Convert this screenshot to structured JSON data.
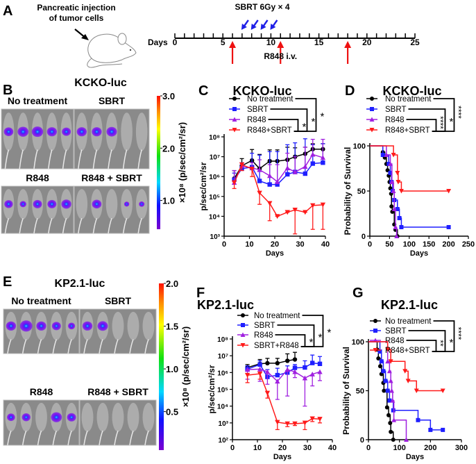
{
  "panel_a": {
    "letter": "A",
    "injection_label_1": "Pancreatic injection",
    "injection_label_2": "of tumor cells",
    "sbrt_label": "SBRT 6Gy × 4",
    "days_label": "Days",
    "day_ticks": [
      "0",
      "5",
      "10",
      "15",
      "20",
      "25"
    ],
    "day_max": 25,
    "sbrt_days": [
      7,
      8,
      9,
      10
    ],
    "r848_days": [
      6,
      11,
      18
    ],
    "r848_label": "R848 i.v.",
    "colors": {
      "sbrt": "#1f1fe6",
      "r848": "#ee1111"
    }
  },
  "panel_b": {
    "letter": "B",
    "title": "KCKO-luc",
    "groups": [
      {
        "label": "No treatment",
        "signal": [
          0.55,
          0.7,
          0.75,
          0.6,
          0.5
        ]
      },
      {
        "label": "SBRT",
        "signal": [
          0.6,
          0.6,
          0.65,
          0,
          0
        ]
      },
      {
        "label": "R848",
        "signal": [
          0.45,
          0.25,
          0.5,
          0.5,
          0.6
        ]
      },
      {
        "label": "R848 + SBRT",
        "signal": [
          0,
          0.55,
          0,
          0.1,
          0.15
        ]
      }
    ],
    "colorbar": {
      "ticks": [
        "3.0",
        "2.0",
        "1.0"
      ],
      "tick_values": [
        3,
        2,
        1
      ],
      "min": 0.45,
      "max": 3.0,
      "label": "×10⁸ (p/sec/cm²/sr)"
    }
  },
  "panel_e": {
    "letter": "E",
    "title": "KP2.1-luc",
    "groups": [
      {
        "label": "No treatment",
        "signal": [
          0.6,
          0.85,
          0.6,
          0.5,
          0.3
        ]
      },
      {
        "label": "SBRT",
        "signal": [
          0.6,
          0.65,
          0,
          0,
          0
        ]
      },
      {
        "label": "R848",
        "signal": [
          0.4,
          0.45,
          0,
          0.7,
          0.5
        ]
      },
      {
        "label": "R848 + SBRT",
        "signal": [
          0,
          0,
          0,
          0,
          0
        ]
      }
    ],
    "colorbar": {
      "ticks": [
        "2.0",
        "1.5",
        "1.0",
        "0.5"
      ],
      "tick_values": [
        2.0,
        1.5,
        1.0,
        0.5
      ],
      "min": 0.05,
      "max": 2.0,
      "label": "×10⁸ (p/sec/cm²/sr)"
    }
  },
  "chart_data": [
    {
      "id": "C",
      "letter": "C",
      "type": "line",
      "title": "KCKO-luc",
      "xlabel": "Days",
      "ylabel": "p/sec/cm²/sr",
      "yscale": "log",
      "xlim": [
        0,
        40
      ],
      "xticks": [
        0,
        10,
        20,
        30,
        40
      ],
      "xtick_labels": [
        "0",
        "10",
        "20",
        "30",
        "40"
      ],
      "ylim_exp": [
        3,
        8
      ],
      "ytick_labels": [
        "10³",
        "10⁴",
        "10⁵",
        "10⁶",
        "10⁷",
        "10⁸"
      ],
      "series": [
        {
          "name": "No treatment",
          "marker": "circle",
          "color": "#000000",
          "x": [
            4,
            7,
            11,
            14,
            18,
            21,
            25,
            28,
            32,
            35,
            39
          ],
          "y": [
            800000.0,
            3500000.0,
            6500000.0,
            2500000.0,
            6000000.0,
            6000000.0,
            7000000.0,
            10000000.0,
            14000000.0,
            24000000.0,
            24000000.0
          ],
          "error_dir": "up",
          "error_bound": [
            2000000.0,
            8000000.0,
            23000000.0,
            13000000.0,
            22000000.0,
            22000000.0,
            30000000.0,
            28000000.0,
            30000000.0,
            45000000.0,
            45000000.0
          ]
        },
        {
          "name": "SBRT",
          "marker": "square",
          "color": "#1f1fff",
          "x": [
            4,
            7,
            11,
            14,
            18,
            21,
            25,
            28,
            32,
            35,
            39
          ],
          "y": [
            700000.0,
            2500000.0,
            3000000.0,
            600000.0,
            400000.0,
            400000.0,
            1300000.0,
            1700000.0,
            1400000.0,
            4500000.0,
            5000000.0
          ],
          "error_dir": "up",
          "error_bound": [
            1500000.0,
            5000000.0,
            15000000.0,
            12000000.0,
            18000000.0,
            18000000.0,
            40000000.0,
            50000000.0,
            80000000.0,
            40000000.0,
            45000000.0
          ]
        },
        {
          "name": "R848",
          "marker": "triangle-up",
          "color": "#a020e0",
          "x": [
            4,
            7,
            11,
            14,
            18,
            21,
            25,
            28,
            32,
            35,
            39
          ],
          "y": [
            500000.0,
            3500000.0,
            2700000.0,
            2200000.0,
            1100000.0,
            550000.0,
            2700000.0,
            1700000.0,
            3200000.0,
            13000000.0,
            9000000.0
          ],
          "error_dir": "up",
          "error_bound": [
            2000000.0,
            4000000.0,
            5000000.0,
            7000000.0,
            4000000.0,
            4000000.0,
            15000000.0,
            10000000.0,
            30000000.0,
            75000000.0,
            75000000.0
          ]
        },
        {
          "name": "R848+SBRT",
          "marker": "triangle-down",
          "color": "#ff1a1a",
          "x": [
            4,
            7,
            11,
            14,
            18,
            21,
            25,
            28,
            32,
            35,
            39
          ],
          "y": [
            500000.0,
            4000000.0,
            2400000.0,
            150000.0,
            45000.0,
            10000.0,
            16000.0,
            21000.0,
            16000.0,
            35000.0,
            38000.0
          ],
          "error_dir": "down",
          "error_bound": [
            250000.0,
            2000000.0,
            1000000.0,
            40000.0,
            6000.0,
            10000.0,
            16000.0,
            1300.0,
            16000.0,
            2200.0,
            2200.0
          ]
        }
      ],
      "significance": [
        {
          "pair": [
            "R848",
            "R848+SBRT"
          ],
          "label": "*"
        },
        {
          "pair": [
            "SBRT",
            "R848+SBRT"
          ],
          "label": "*"
        },
        {
          "pair": [
            "No treatment",
            "R848+SBRT"
          ],
          "label": "*"
        }
      ]
    },
    {
      "id": "D",
      "letter": "D",
      "type": "line",
      "subtype": "survival",
      "title": "KCKO-luc",
      "xlabel": "Days",
      "ylabel": "Probability of Survival",
      "xlim": [
        0,
        250
      ],
      "xticks": [
        0,
        50,
        100,
        150,
        200,
        250
      ],
      "xtick_labels": [
        "0",
        "50",
        "100",
        "150",
        "200",
        "250"
      ],
      "ylim": [
        0,
        100
      ],
      "yticks": [
        0,
        50,
        100
      ],
      "ytick_labels": [
        "0",
        "50",
        "100"
      ],
      "series": [
        {
          "name": "No treatment",
          "marker": "circle",
          "color": "#000000",
          "x": [
            33,
            38,
            42,
            45,
            48,
            50,
            52,
            54,
            55,
            57,
            62,
            65,
            70
          ],
          "y": [
            93,
            87,
            80,
            73,
            67,
            60,
            53,
            47,
            33,
            27,
            13,
            7,
            0
          ]
        },
        {
          "name": "SBRT",
          "marker": "square",
          "color": "#1f1fff",
          "x": [
            33,
            48,
            52,
            55,
            58,
            62,
            70,
            75,
            80,
            200
          ],
          "y": [
            90,
            80,
            70,
            60,
            50,
            40,
            30,
            20,
            10,
            10
          ]
        },
        {
          "name": "R848",
          "marker": "triangle-up",
          "color": "#a020e0",
          "x": [
            42,
            52,
            56,
            60,
            62,
            65,
            68
          ],
          "y": [
            90,
            80,
            60,
            50,
            30,
            10,
            0
          ]
        },
        {
          "name": "R848+SBRT",
          "marker": "triangle-down",
          "color": "#ff1a1a",
          "x": [
            60,
            70,
            72,
            80,
            200
          ],
          "y": [
            90,
            70,
            60,
            50,
            50
          ]
        }
      ],
      "significance": [
        {
          "pair": [
            "R848",
            "R848+SBRT"
          ],
          "label": "****"
        },
        {
          "pair": [
            "SBRT",
            "R848+SBRT"
          ],
          "label": "*"
        },
        {
          "pair": [
            "No treatment",
            "R848+SBRT"
          ],
          "label": "****"
        }
      ]
    },
    {
      "id": "F",
      "letter": "F",
      "type": "line",
      "title": "KP2.1-luc",
      "xlabel": "Days",
      "ylabel": "p/sec/cm²/sr",
      "yscale": "log",
      "xlim": [
        0,
        40
      ],
      "xticks": [
        0,
        10,
        20,
        30,
        40
      ],
      "xtick_labels": [
        "0",
        "10",
        "20",
        "30",
        "40"
      ],
      "ylim_exp": [
        2,
        8
      ],
      "ytick_labels": [
        "10²",
        "10³",
        "10⁴",
        "10⁵",
        "10⁶",
        "10⁷",
        "10⁸"
      ],
      "series": [
        {
          "name": "No treatment",
          "marker": "circle",
          "color": "#000000",
          "x": [
            6,
            11,
            14,
            18,
            22,
            25
          ],
          "y": [
            2000000.0,
            3300000.0,
            3600000.0,
            3600000.0,
            5000000.0,
            6000000.0
          ],
          "error_dir": "up",
          "error_bound": [
            3000000.0,
            6000000.0,
            7000000.0,
            7000000.0,
            13000000.0,
            16000000.0
          ]
        },
        {
          "name": "SBRT",
          "marker": "square",
          "color": "#1f1fff",
          "x": [
            6,
            11,
            14,
            18,
            22,
            25,
            29,
            32,
            35
          ],
          "y": [
            1600000.0,
            3000000.0,
            550000.0,
            700000.0,
            1000000.0,
            1900000.0,
            2000000.0,
            3700000.0,
            3300000.0
          ],
          "error_dir": "up",
          "error_bound": [
            2500000.0,
            5000000.0,
            1500000.0,
            1800000.0,
            2500000.0,
            3000000.0,
            5000000.0,
            11000000.0,
            9000000.0
          ]
        },
        {
          "name": "R848",
          "marker": "triangle-up",
          "color": "#a020e0",
          "x": [
            6,
            11,
            14,
            18,
            22,
            25,
            29,
            32,
            35
          ],
          "y": [
            1500000.0,
            1600000.0,
            1100000.0,
            300000.0,
            1500000.0,
            1100000.0,
            470000.0,
            800000.0,
            1100000.0
          ],
          "error_dir": "down",
          "error_bound": [
            400000.0,
            300000.0,
            200000.0,
            25000.0,
            40000.0,
            500000.0,
            10000.0,
            160000.0,
            330000.0
          ]
        },
        {
          "name": "SBRT+R848",
          "marker": "triangle-down",
          "color": "#ff1a1a",
          "x": [
            6,
            11,
            14,
            18,
            22,
            25,
            29,
            32,
            35
          ],
          "y": [
            700000.0,
            850000.0,
            60000.0,
            1100.0,
            900.0,
            900.0,
            1000.0,
            1800.0,
            1700.0
          ],
          "error_dir": "down",
          "error_bound": [
            250000.0,
            400000.0,
            30000.0,
            400.0,
            600.0,
            700.0,
            400.0,
            1200.0,
            1000.0
          ]
        }
      ],
      "significance": [
        {
          "pair": [
            "R848",
            "SBRT+R848"
          ],
          "label": "*"
        },
        {
          "pair": [
            "SBRT",
            "SBRT+R848"
          ],
          "label": "*"
        },
        {
          "pair": [
            "No treatment",
            "SBRT+R848"
          ],
          "label": "*"
        }
      ]
    },
    {
      "id": "G",
      "letter": "G",
      "type": "line",
      "subtype": "survival",
      "title": "KP2.1-luc",
      "xlabel": "Days",
      "ylabel": "Probability of Survival",
      "xlim": [
        0,
        300
      ],
      "xticks": [
        0,
        100,
        200,
        300
      ],
      "xtick_labels": [
        "0",
        "100",
        "200",
        "300"
      ],
      "ylim": [
        0,
        100
      ],
      "yticks": [
        0,
        50,
        100
      ],
      "ytick_labels": [
        "0",
        "50",
        "100"
      ],
      "series": [
        {
          "name": "No treatment",
          "marker": "circle",
          "color": "#000000",
          "x": [
            28,
            32,
            38,
            42,
            48,
            50,
            60,
            65,
            70,
            72,
            80
          ],
          "y": [
            92,
            83,
            75,
            67,
            58,
            50,
            33,
            25,
            17,
            8,
            0
          ]
        },
        {
          "name": "SBRT",
          "marker": "square",
          "color": "#1f1fff",
          "x": [
            37,
            42,
            48,
            55,
            62,
            68,
            80,
            160,
            200,
            240
          ],
          "y": [
            90,
            80,
            70,
            60,
            50,
            40,
            30,
            20,
            10,
            10
          ]
        },
        {
          "name": "R848",
          "marker": "triangle-up",
          "color": "#a020e0",
          "x": [
            62,
            68,
            72,
            75,
            78,
            82,
            122
          ],
          "y": [
            80,
            70,
            60,
            50,
            40,
            20,
            0
          ]
        },
        {
          "name": "R848+SBRT",
          "marker": "triangle-down",
          "color": "#ff1a1a",
          "x": [
            62,
            72,
            118,
            128,
            155,
            240
          ],
          "y": [
            92,
            80,
            70,
            60,
            50,
            50
          ]
        }
      ],
      "significance": [
        {
          "pair": [
            "R848",
            "R848+SBRT"
          ],
          "label": "**"
        },
        {
          "pair": [
            "SBRT",
            "R848+SBRT"
          ],
          "label": "*"
        },
        {
          "pair": [
            "No treatment",
            "R848+SBRT"
          ],
          "label": "****"
        }
      ]
    }
  ]
}
